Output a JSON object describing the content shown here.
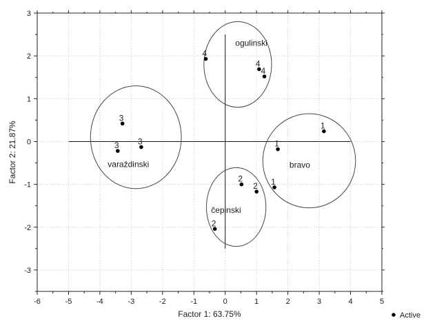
{
  "chart_data": {
    "type": "scatter",
    "xlabel": "Factor 1: 63.75%",
    "ylabel": "Factor 2: 21.87%",
    "xlim": [
      -6,
      5
    ],
    "ylim": [
      -3.5,
      3
    ],
    "xticks": [
      -6,
      -5,
      -4,
      -3,
      -2,
      -1,
      0,
      1,
      2,
      3,
      4,
      5
    ],
    "yticks": [
      3,
      2,
      1,
      0,
      -1,
      -2,
      -3
    ],
    "grid": true,
    "legend_position": "bottom-right",
    "legend_label": "Active",
    "points": [
      {
        "label": "4",
        "x": -0.62,
        "y": 1.93
      },
      {
        "label": "4",
        "x": 1.08,
        "y": 1.69
      },
      {
        "label": "4",
        "x": 1.25,
        "y": 1.52
      },
      {
        "label": "3",
        "x": -3.28,
        "y": 0.42
      },
      {
        "label": "3",
        "x": -3.43,
        "y": -0.22
      },
      {
        "label": "3",
        "x": -2.68,
        "y": -0.13
      },
      {
        "label": "1",
        "x": 3.15,
        "y": 0.24
      },
      {
        "label": "1",
        "x": 1.68,
        "y": -0.18
      },
      {
        "label": "1",
        "x": 1.57,
        "y": -1.07
      },
      {
        "label": "2",
        "x": 0.52,
        "y": -1.0
      },
      {
        "label": "2",
        "x": 1.0,
        "y": -1.17
      },
      {
        "label": "2",
        "x": -0.33,
        "y": -2.04
      }
    ],
    "groups": [
      {
        "name": "ogulinski",
        "cx": 0.4,
        "cy": 1.8,
        "rx": 1.08,
        "ry": 1.0
      },
      {
        "name": "varaždinski",
        "cx": -2.85,
        "cy": 0.1,
        "rx": 1.45,
        "ry": 1.2
      },
      {
        "name": "bravo",
        "cx": 2.68,
        "cy": -0.45,
        "rx": 1.48,
        "ry": 1.1
      },
      {
        "name": "čepinski",
        "cx": 0.35,
        "cy": -1.53,
        "rx": 0.95,
        "ry": 0.92
      }
    ],
    "guide_lines": {
      "horizontal_y": 0,
      "horizontal_x_from": -5,
      "horizontal_x_to": 4,
      "vertical_x": 0,
      "vertical_y_from": -2.5,
      "vertical_y_to": 2.5
    }
  }
}
